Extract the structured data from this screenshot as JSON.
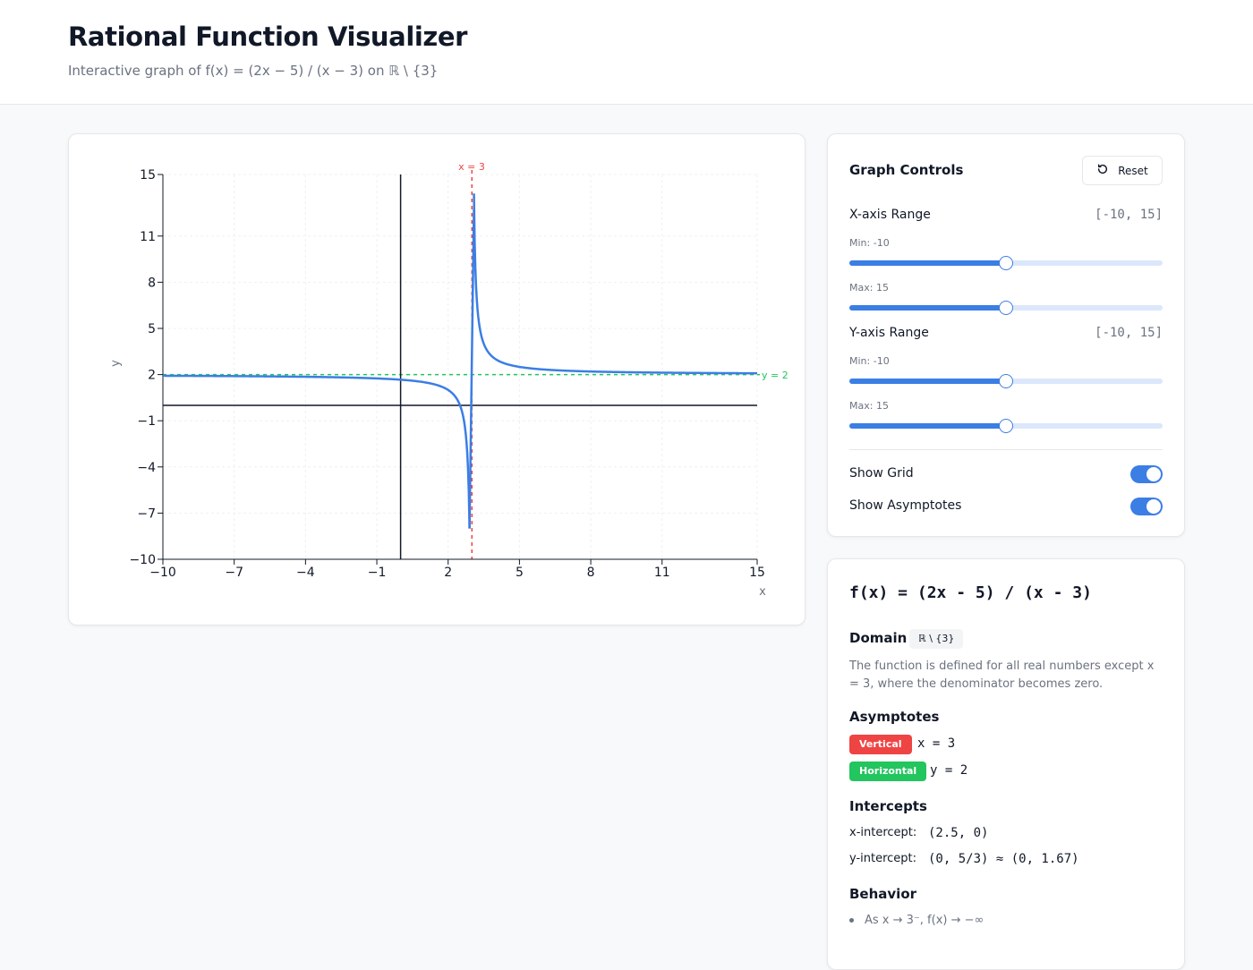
{
  "header": {
    "title": "Rational Function Visualizer",
    "subtitle": "Interactive graph of f(x) = (2x − 5) / (x − 3) on ℝ \\ {3}"
  },
  "graph": {
    "x_axis_label": "x",
    "y_axis_label": "y",
    "vertical_asymptote_label": "x = 3",
    "horizontal_asymptote_label": "y = 2",
    "colors": {
      "curve": "#3b7ee4",
      "vertical_asymptote": "#ef4444",
      "horizontal_asymptote": "#22c55e"
    }
  },
  "chart_data": {
    "type": "line",
    "title": "",
    "xlabel": "x",
    "ylabel": "y",
    "xlim": [
      -10,
      15
    ],
    "ylim": [
      -10,
      15
    ],
    "x_ticks": [
      -10,
      -7,
      -4,
      -1,
      2,
      5,
      8,
      11,
      15
    ],
    "y_ticks": [
      15,
      11,
      8,
      5,
      2,
      -1,
      -4,
      -7,
      -10
    ],
    "grid": true,
    "function": "f(x) = (2x - 5) / (x - 3)",
    "series": [
      {
        "values_left": [
          [
            -10,
            1.923
          ],
          [
            -7,
            1.9
          ],
          [
            -4,
            1.857
          ],
          [
            -1,
            1.75
          ],
          [
            0,
            1.667
          ],
          [
            1,
            1.5
          ],
          [
            2,
            1.0
          ],
          [
            2.5,
            0
          ],
          [
            2.8,
            -3.0
          ],
          [
            2.9,
            -8.0
          ]
        ],
        "values_right": [
          [
            3.085,
            12.76
          ],
          [
            3.1,
            12.0
          ],
          [
            3.5,
            4.0
          ],
          [
            4,
            3.0
          ],
          [
            5,
            2.5
          ],
          [
            8,
            2.2
          ],
          [
            11,
            2.125
          ],
          [
            15,
            2.083
          ]
        ]
      }
    ],
    "asymptotes": {
      "vertical": 3,
      "horizontal": 2
    }
  },
  "controls": {
    "title": "Graph Controls",
    "reset_label": "Reset",
    "x_range": {
      "label": "X-axis Range",
      "value": "[-10, 15]",
      "min_label": "Min: -10",
      "max_label": "Max: 15",
      "min_fraction": 0.5,
      "max_fraction": 0.5
    },
    "y_range": {
      "label": "Y-axis Range",
      "value": "[-10, 15]",
      "min_label": "Min: -10",
      "max_label": "Max: 15",
      "min_fraction": 0.5,
      "max_fraction": 0.5
    },
    "show_grid": {
      "label": "Show Grid",
      "on": true
    },
    "show_asymptotes": {
      "label": "Show Asymptotes",
      "on": true
    }
  },
  "info": {
    "function": "f(x) = (2x - 5) / (x - 3)",
    "domain_title": "Domain",
    "domain_badge": "ℝ \\ {3}",
    "domain_desc": "The function is defined for all real numbers except x = 3, where the denominator becomes zero.",
    "asymptotes_title": "Asymptotes",
    "vertical_tag": "Vertical",
    "vertical_eq": "x = 3",
    "horizontal_tag": "Horizontal",
    "horizontal_eq": "y = 2",
    "intercepts_title": "Intercepts",
    "x_intercept_label": "x-intercept:",
    "x_intercept_value": "(2.5, 0)",
    "y_intercept_label": "y-intercept:",
    "y_intercept_value": "(0, 5/3) ≈ (0, 1.67)",
    "behavior_title": "Behavior",
    "behavior_1": "As x → 3⁻, f(x) → −∞"
  }
}
